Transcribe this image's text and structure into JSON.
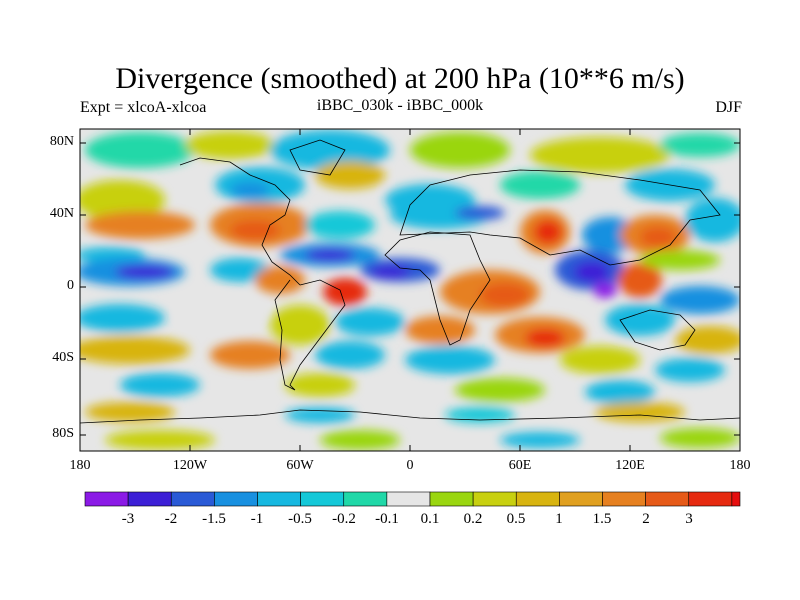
{
  "title": "Divergence (smoothed) at 200 hPa (10**6 m/s)",
  "subtitle_left": "Expt = xlcoA-xlcoa",
  "subtitle_center": "iBBC_030k - iBBC_000k",
  "subtitle_right": "DJF",
  "lat_labels": [
    "80N",
    "40N",
    "0",
    "40S",
    "80S"
  ],
  "lon_labels": [
    "180",
    "120W",
    "60W",
    "0",
    "60E",
    "120E",
    "180"
  ],
  "colorbar": {
    "colors": [
      "#8b1ae6",
      "#3c1fd6",
      "#2a5ad6",
      "#1890e0",
      "#16b8e0",
      "#14c8d8",
      "#20d8a8",
      "#e6e6e6",
      "#9ad610",
      "#c8d010",
      "#d8b410",
      "#e0a020",
      "#e68020",
      "#e65a18",
      "#e62a10",
      "#e60e0e"
    ],
    "labels": [
      "-3",
      "-2",
      "-1.5",
      "-1",
      "-0.5",
      "-0.2",
      "-0.1",
      "0.1",
      "0.2",
      "0.5",
      "1",
      "1.5",
      "2",
      "3"
    ]
  }
}
